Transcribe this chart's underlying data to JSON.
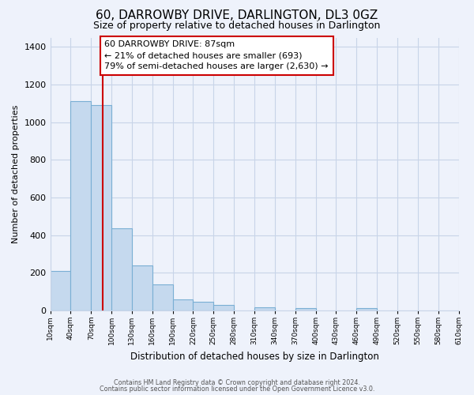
{
  "title": "60, DARROWBY DRIVE, DARLINGTON, DL3 0GZ",
  "subtitle": "Size of property relative to detached houses in Darlington",
  "xlabel": "Distribution of detached houses by size in Darlington",
  "ylabel": "Number of detached properties",
  "bar_color": "#c5d9ee",
  "bar_edge_color": "#7aafd4",
  "vline_x": 87,
  "vline_color": "#cc0000",
  "annotation_title": "60 DARROWBY DRIVE: 87sqm",
  "annotation_line1": "← 21% of detached houses are smaller (693)",
  "annotation_line2": "79% of semi-detached houses are larger (2,630) →",
  "annotation_box_color": "#ffffff",
  "annotation_box_edge": "#cc0000",
  "bin_edges": [
    10,
    40,
    70,
    100,
    130,
    160,
    190,
    220,
    250,
    280,
    310,
    340,
    370,
    400,
    430,
    460,
    490,
    520,
    550,
    580,
    610
  ],
  "bin_counts": [
    210,
    1110,
    1090,
    435,
    240,
    140,
    60,
    47,
    27,
    0,
    15,
    0,
    10,
    0,
    0,
    10,
    0,
    0,
    0,
    0
  ],
  "ylim": [
    0,
    1450
  ],
  "yticks": [
    0,
    200,
    400,
    600,
    800,
    1000,
    1200,
    1400
  ],
  "footer1": "Contains HM Land Registry data © Crown copyright and database right 2024.",
  "footer2": "Contains public sector information licensed under the Open Government Licence v3.0.",
  "background_color": "#eef2fb",
  "grid_color": "#c8d4e8",
  "title_fontsize": 11,
  "subtitle_fontsize": 9
}
